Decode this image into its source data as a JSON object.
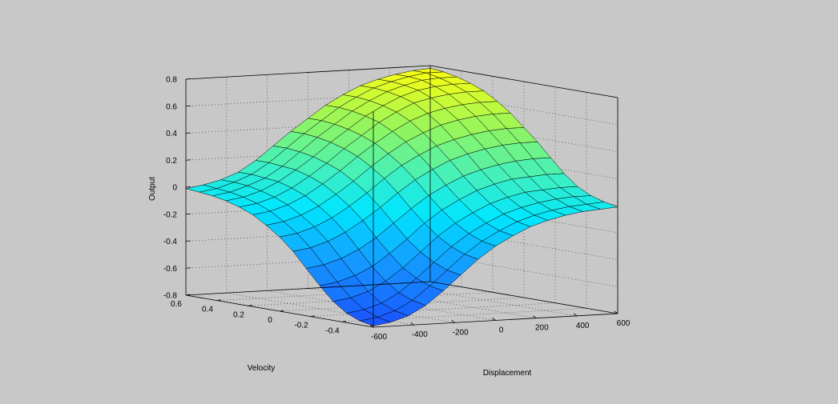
{
  "chart_data": {
    "type": "surface",
    "title": "",
    "xlabel": "Displacement",
    "ylabel": "Velocity",
    "zlabel": "Output",
    "xlim": [
      -600,
      600
    ],
    "ylim": [
      -0.6,
      0.6
    ],
    "zlim": [
      -0.8,
      0.8
    ],
    "xticks": [
      -600,
      -400,
      -200,
      0,
      200,
      400,
      600
    ],
    "yticks": [
      -0.4,
      -0.2,
      0,
      0.2,
      0.4,
      0.6
    ],
    "zticks": [
      -0.8,
      -0.6,
      -0.4,
      -0.2,
      0,
      0.2,
      0.4,
      0.6,
      0.8
    ],
    "grid": true,
    "colormap": "parula-like (blue to cyan to green to yellow)",
    "grid_resolution": [
      15,
      15
    ],
    "x": [
      -600,
      -514.3,
      -428.6,
      -342.9,
      -257.1,
      -171.4,
      -85.7,
      0,
      85.7,
      171.4,
      257.1,
      342.9,
      428.6,
      514.3,
      600
    ],
    "y": [
      -0.6,
      -0.514,
      -0.429,
      -0.343,
      -0.257,
      -0.171,
      -0.086,
      0,
      0.086,
      0.171,
      0.257,
      0.343,
      0.429,
      0.514,
      0.6
    ],
    "z": [
      [
        -0.79,
        -0.77,
        -0.73,
        -0.66,
        -0.56,
        -0.45,
        -0.34,
        -0.25,
        -0.18,
        -0.12,
        -0.08,
        -0.05,
        -0.03,
        -0.02,
        -0.01
      ],
      [
        -0.77,
        -0.75,
        -0.71,
        -0.64,
        -0.54,
        -0.43,
        -0.32,
        -0.23,
        -0.16,
        -0.1,
        -0.06,
        -0.03,
        -0.01,
        0.0,
        0.01
      ],
      [
        -0.73,
        -0.71,
        -0.67,
        -0.6,
        -0.5,
        -0.39,
        -0.28,
        -0.19,
        -0.12,
        -0.06,
        -0.02,
        0.01,
        0.03,
        0.04,
        0.04
      ],
      [
        -0.66,
        -0.64,
        -0.6,
        -0.53,
        -0.44,
        -0.33,
        -0.22,
        -0.13,
        -0.06,
        0.0,
        0.04,
        0.07,
        0.08,
        0.09,
        0.09
      ],
      [
        -0.56,
        -0.54,
        -0.5,
        -0.44,
        -0.35,
        -0.25,
        -0.14,
        -0.05,
        0.02,
        0.08,
        0.12,
        0.15,
        0.16,
        0.17,
        0.17
      ],
      [
        -0.45,
        -0.43,
        -0.39,
        -0.33,
        -0.25,
        -0.15,
        -0.05,
        0.04,
        0.11,
        0.17,
        0.21,
        0.24,
        0.26,
        0.27,
        0.27
      ],
      [
        -0.34,
        -0.32,
        -0.28,
        -0.22,
        -0.14,
        -0.05,
        0.05,
        0.14,
        0.21,
        0.27,
        0.31,
        0.34,
        0.36,
        0.37,
        0.37
      ],
      [
        -0.25,
        -0.23,
        -0.19,
        -0.13,
        -0.05,
        0.04,
        0.14,
        0.23,
        0.3,
        0.36,
        0.4,
        0.43,
        0.45,
        0.46,
        0.46
      ],
      [
        -0.18,
        -0.16,
        -0.12,
        -0.06,
        0.02,
        0.11,
        0.21,
        0.3,
        0.38,
        0.44,
        0.49,
        0.52,
        0.54,
        0.55,
        0.55
      ],
      [
        -0.12,
        -0.1,
        -0.06,
        0.0,
        0.08,
        0.17,
        0.27,
        0.36,
        0.44,
        0.51,
        0.56,
        0.59,
        0.61,
        0.62,
        0.62
      ],
      [
        -0.08,
        -0.06,
        -0.02,
        0.04,
        0.12,
        0.21,
        0.31,
        0.4,
        0.49,
        0.56,
        0.62,
        0.65,
        0.67,
        0.68,
        0.68
      ],
      [
        -0.05,
        -0.03,
        0.01,
        0.07,
        0.15,
        0.24,
        0.34,
        0.43,
        0.52,
        0.59,
        0.65,
        0.69,
        0.71,
        0.72,
        0.72
      ],
      [
        -0.03,
        -0.01,
        0.03,
        0.08,
        0.16,
        0.26,
        0.36,
        0.45,
        0.54,
        0.61,
        0.67,
        0.71,
        0.74,
        0.75,
        0.75
      ],
      [
        -0.02,
        0.0,
        0.04,
        0.09,
        0.17,
        0.27,
        0.37,
        0.46,
        0.55,
        0.62,
        0.68,
        0.72,
        0.75,
        0.77,
        0.77
      ],
      [
        -0.01,
        0.01,
        0.04,
        0.09,
        0.17,
        0.27,
        0.37,
        0.46,
        0.55,
        0.62,
        0.68,
        0.72,
        0.75,
        0.77,
        0.78
      ]
    ]
  }
}
